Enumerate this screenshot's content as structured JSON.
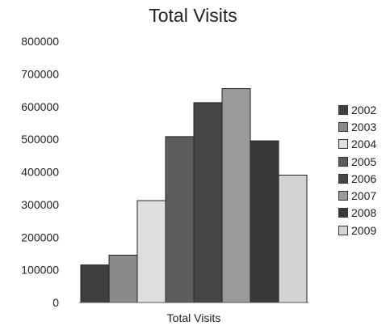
{
  "chart_data": {
    "type": "bar",
    "title": "Total Visits",
    "xlabel": "Total Visits",
    "ylabel": "",
    "ylim": [
      0,
      800000
    ],
    "yticks": [
      "800000",
      "700000",
      "600000",
      "500000",
      "400000",
      "300000",
      "200000",
      "100000",
      "0"
    ],
    "legend_position": "right",
    "series": [
      {
        "name": "2002",
        "values": [
          115000
        ],
        "color": "#3f3f3f"
      },
      {
        "name": "2003",
        "values": [
          145000
        ],
        "color": "#8a8a8a"
      },
      {
        "name": "2004",
        "values": [
          312000
        ],
        "color": "#dedede"
      },
      {
        "name": "2005",
        "values": [
          508000
        ],
        "color": "#5d5d5d"
      },
      {
        "name": "2006",
        "values": [
          612000
        ],
        "color": "#454545"
      },
      {
        "name": "2007",
        "values": [
          655000
        ],
        "color": "#9a9a9a"
      },
      {
        "name": "2008",
        "values": [
          495000
        ],
        "color": "#3a3a3a"
      },
      {
        "name": "2009",
        "values": [
          390000
        ],
        "color": "#d3d3d3"
      }
    ]
  }
}
